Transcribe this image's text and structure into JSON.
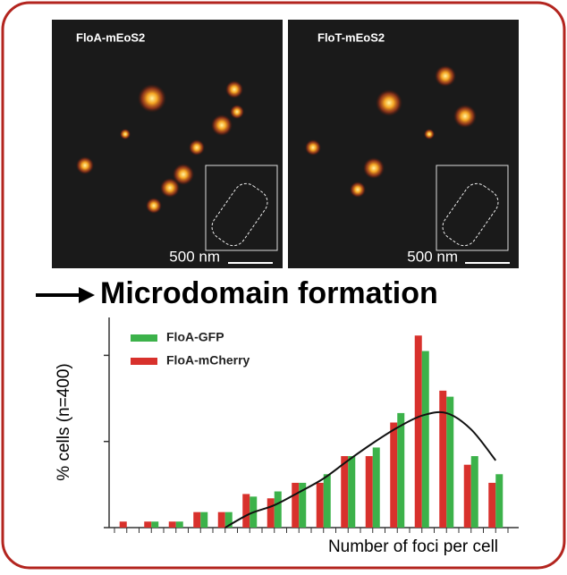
{
  "panels": [
    {
      "label": "FloA-mEoS2",
      "scale": "500 nm"
    },
    {
      "label": "FloT-mEoS2",
      "scale": "500 nm"
    }
  ],
  "heading": "Microdomain formation",
  "chart_data": {
    "type": "bar",
    "y_label": "% cells (n=400)",
    "x_label": "Number of foci per cell",
    "categories": [
      null,
      null,
      null,
      null,
      null,
      null,
      null,
      null,
      null,
      null,
      null,
      null,
      null,
      null,
      null,
      null
    ],
    "series": [
      {
        "name": "FloA-GFP",
        "color": "#3cb24a",
        "values": [
          0,
          0.7,
          0.7,
          1.8,
          1.8,
          3.6,
          4.2,
          5.2,
          6.2,
          8.3,
          9.3,
          13.3,
          20.5,
          15.2,
          8.3,
          6.2
        ]
      },
      {
        "name": "FloA-mCherry",
        "color": "#d8312c",
        "values": [
          0.7,
          0.7,
          0.7,
          1.8,
          1.8,
          3.9,
          3.4,
          5.2,
          5.2,
          8.3,
          8.3,
          12.2,
          22.3,
          15.9,
          7.3,
          5.2
        ]
      }
    ],
    "fit": {
      "color": "#111111",
      "values": [
        null,
        null,
        null,
        null,
        0,
        1.6,
        2.6,
        4.1,
        5.7,
        7.8,
        9.8,
        11.6,
        13.0,
        13.3,
        11.4,
        7.8
      ]
    },
    "ylim": [
      0,
      24.4
    ],
    "yticks": [
      0,
      10,
      20
    ],
    "legend": "top-left"
  }
}
